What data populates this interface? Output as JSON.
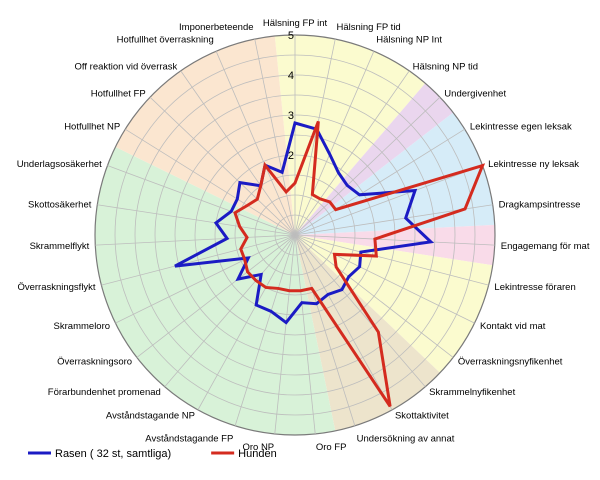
{
  "chart_data": {
    "type": "radar",
    "title": "",
    "rlim": [
      0,
      5
    ],
    "ticks": [
      "2",
      "3",
      "4",
      "5"
    ],
    "grid": true,
    "legend_placement": "bottom-left",
    "categories": [
      "Hälsning FP int",
      "Hälsning FP tid",
      "Hälsning NP Int",
      "Hälsning NP tid",
      "Undergivenhet",
      "Lekintresse egen leksak",
      "Lekintresse ny leksak",
      "Dragkampsintresse",
      "Engagemang för mat",
      "Lekintresse föraren",
      "Kontakt vid mat",
      "Överraskningsnyfikenhet",
      "Skrammelnyfikenhet",
      "Skottaktivitet",
      "Undersökning av annat",
      "Oro FP",
      "Oro NP",
      "Avståndstagande FP",
      "Avståndstagande NP",
      "Förarbundenhet promenad",
      "Överraskningsoro",
      "Skrammeloro",
      "Överraskningsflykt",
      "Skrammelflykt",
      "Skottosäkerhet",
      "Underlagsosäkerhet",
      "Hotfullhet NP",
      "Hotfullhet FP",
      "Off reaktion vid överrask",
      "Hotfullhet överraskning",
      "Imponerbeteende"
    ],
    "series": [
      {
        "name": "Rasen ( 32 st, samtliga)",
        "color": "#1b1bc4",
        "values": [
          2.8,
          2.7,
          2.2,
          1.9,
          1.8,
          1.9,
          3.2,
          2.8,
          3.4,
          1.7,
          1.8,
          1.7,
          1.8,
          1.7,
          1.8,
          1.7,
          2.2,
          2.0,
          2.0,
          1.3,
          1.8,
          1.3,
          3.1,
          1.7,
          2.0,
          1.7,
          1.7,
          1.9,
          1.5,
          1.9,
          1.6
        ]
      },
      {
        "name": "Hunden",
        "color": "#d42b1f",
        "values": [
          1.3,
          2.9,
          1.1,
          1.1,
          1.2,
          1.2,
          5.0,
          4.3,
          2.0,
          2.1,
          1.1,
          1.3,
          3.2,
          4.9,
          1.4,
          1.4,
          1.4,
          1.4,
          1.5,
          1.5,
          1.5,
          1.4,
          1.4,
          1.2,
          1.4,
          1.6,
          1.4,
          1.3,
          1.5,
          1.9,
          1.1
        ]
      }
    ],
    "sector_fills": [
      {
        "color": "#fbfbcf",
        "from": 0,
        "to": 4
      },
      {
        "color": "#ead6ee",
        "from": 4,
        "to": 5
      },
      {
        "color": "#d6ecf8",
        "from": 5,
        "to": 8
      },
      {
        "color": "#f9dbe9",
        "from": 8,
        "to": 9
      },
      {
        "color": "#fbfbcf",
        "from": 9,
        "to": 12
      },
      {
        "color": "#ede4cc",
        "from": 12,
        "to": 15
      },
      {
        "color": "#d8f2d8",
        "from": 15,
        "to": 26
      },
      {
        "color": "#fbe6d0",
        "from": 26,
        "to": 31
      }
    ]
  }
}
